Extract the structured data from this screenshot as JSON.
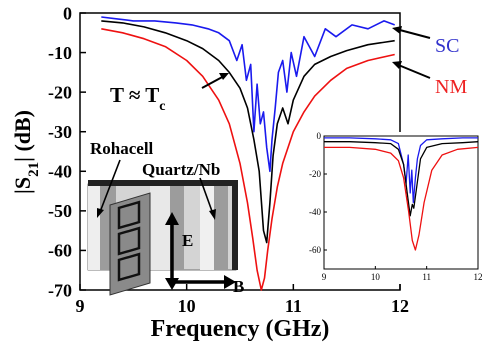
{
  "chart_data": [
    {
      "type": "line",
      "title": "",
      "xlabel": "Frequency (GHz)",
      "ylabel": "|S21| (dB)",
      "xlim": [
        9,
        12
      ],
      "ylim": [
        -70,
        0
      ],
      "xticks": [
        9,
        10,
        11,
        12
      ],
      "yticks": [
        0,
        -10,
        -20,
        -30,
        -40,
        -50,
        -60,
        -70
      ],
      "grid": false,
      "series": [
        {
          "name": "SC",
          "color": "#1a1aee",
          "x": [
            9.2,
            9.35,
            9.5,
            9.7,
            9.9,
            10.05,
            10.2,
            10.3,
            10.4,
            10.47,
            10.52,
            10.56,
            10.6,
            10.63,
            10.66,
            10.69,
            10.72,
            10.75,
            10.78,
            10.8,
            10.83,
            10.86,
            10.9,
            10.94,
            10.98,
            11.03,
            11.1,
            11.2,
            11.3,
            11.4,
            11.55,
            11.7,
            11.85,
            11.95
          ],
          "y": [
            -1,
            -1.5,
            -2,
            -2,
            -2.5,
            -3,
            -4,
            -5,
            -7,
            -12,
            -8,
            -17,
            -13,
            -30,
            -18,
            -28,
            -25,
            -34,
            -40,
            -32,
            -24,
            -15,
            -12,
            -20,
            -10,
            -16,
            -6,
            -11,
            -4,
            -6,
            -3,
            -4,
            -2,
            -3
          ]
        },
        {
          "name": "T ≈ Tc",
          "color": "#000000",
          "x": [
            9.2,
            9.4,
            9.6,
            9.8,
            10.0,
            10.15,
            10.3,
            10.4,
            10.5,
            10.57,
            10.63,
            10.68,
            10.72,
            10.75,
            10.78,
            10.81,
            10.85,
            10.9,
            10.95,
            11.0,
            11.1,
            11.2,
            11.35,
            11.5,
            11.7,
            11.95
          ],
          "y": [
            -2,
            -2.5,
            -3.5,
            -5,
            -7,
            -9,
            -12,
            -15,
            -19,
            -24,
            -32,
            -40,
            -55,
            -58,
            -48,
            -36,
            -28,
            -24,
            -28,
            -22,
            -16,
            -13,
            -11,
            -9.5,
            -8,
            -7
          ]
        },
        {
          "name": "NM",
          "color": "#ee1111",
          "x": [
            9.2,
            9.4,
            9.6,
            9.8,
            10.0,
            10.15,
            10.3,
            10.4,
            10.5,
            10.57,
            10.62,
            10.66,
            10.7,
            10.73,
            10.76,
            10.8,
            10.85,
            10.9,
            11.0,
            11.1,
            11.2,
            11.35,
            11.5,
            11.7,
            11.95
          ],
          "y": [
            -4,
            -5,
            -6.5,
            -8.5,
            -12,
            -16,
            -22,
            -28,
            -38,
            -48,
            -57,
            -65,
            -70,
            -67,
            -60,
            -52,
            -44,
            -38,
            -30,
            -25,
            -21,
            -17,
            -14,
            -12,
            -10.5
          ]
        }
      ],
      "annotations": {
        "sc_label": "SC",
        "nm_label": "NM",
        "tc_label": "T ≈ T",
        "tc_subscript": "c",
        "rohacell_label": "Rohacell",
        "quartz_label": "Quartz/Nb",
        "e_label": "E",
        "b_label": "B"
      }
    },
    {
      "type": "line",
      "title": "",
      "xlabel": "",
      "ylabel": "",
      "xlim": [
        9,
        12
      ],
      "ylim": [
        -70,
        0
      ],
      "xticks": [
        9,
        10,
        11,
        12
      ],
      "yticks": [
        0,
        -20,
        -40,
        -60
      ],
      "grid": false,
      "series": [
        {
          "color": "#1a1aee",
          "x": [
            9.0,
            9.5,
            10.0,
            10.3,
            10.45,
            10.55,
            10.6,
            10.64,
            10.68,
            10.71,
            10.74,
            10.78,
            10.82,
            10.88,
            11.0,
            11.3,
            11.7,
            12.0
          ],
          "y": [
            -1,
            -1,
            -1.5,
            -2,
            -4,
            -15,
            -25,
            -10,
            -30,
            -18,
            -35,
            -22,
            -12,
            -5,
            -2,
            -1.5,
            -1,
            -1
          ]
        },
        {
          "color": "#000000",
          "x": [
            9.0,
            9.5,
            10.0,
            10.3,
            10.45,
            10.55,
            10.62,
            10.68,
            10.72,
            10.75,
            10.8,
            10.88,
            11.0,
            11.3,
            11.7,
            12.0
          ],
          "y": [
            -3,
            -3,
            -3.5,
            -4,
            -7,
            -15,
            -30,
            -42,
            -36,
            -38,
            -28,
            -12,
            -6,
            -4,
            -3.5,
            -3
          ]
        },
        {
          "color": "#ee1111",
          "x": [
            9.0,
            9.5,
            10.0,
            10.3,
            10.45,
            10.55,
            10.65,
            10.72,
            10.78,
            10.85,
            10.95,
            11.1,
            11.3,
            11.6,
            12.0
          ],
          "y": [
            -6,
            -6,
            -7,
            -9,
            -13,
            -22,
            -40,
            -55,
            -60,
            -52,
            -35,
            -18,
            -10,
            -7,
            -6
          ]
        }
      ]
    }
  ]
}
